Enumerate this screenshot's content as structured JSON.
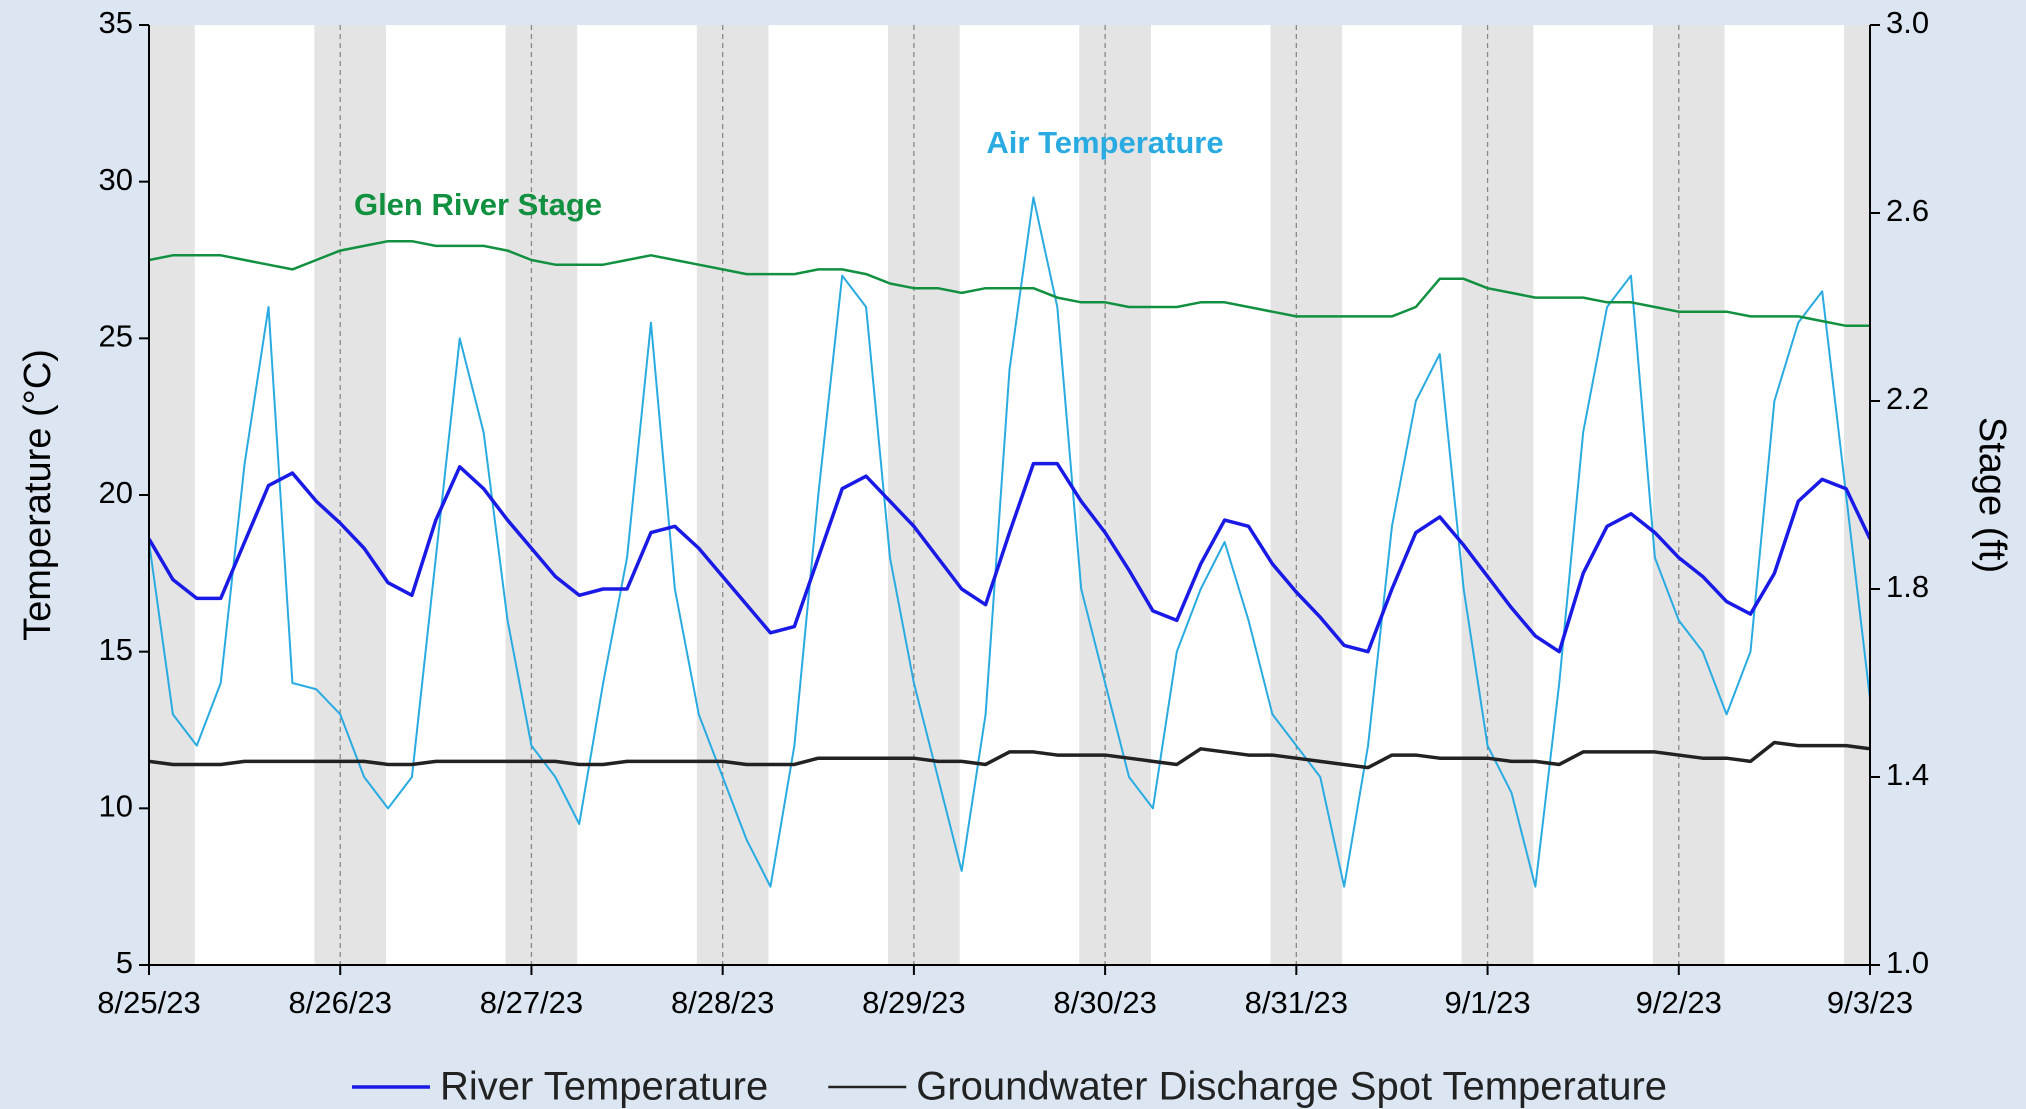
{
  "chart_data": {
    "type": "line",
    "y_label": "Temperature (°C)",
    "y2_label": "Stage (ft)",
    "xlim": [
      "8/25/23",
      "9/3/23"
    ],
    "xticks": [
      "8/25/23",
      "8/26/23",
      "8/27/23",
      "8/28/23",
      "8/29/23",
      "8/30/23",
      "8/31/23",
      "9/1/23",
      "9/2/23",
      "9/3/23"
    ],
    "ylim": [
      5,
      35
    ],
    "yticks": [
      5,
      10,
      15,
      20,
      25,
      30,
      35
    ],
    "y2lim": [
      1,
      3
    ],
    "y2ticks": [
      {
        "value": 1,
        "label": "1.0"
      },
      {
        "value": 1.4,
        "label": "1.4"
      },
      {
        "value": 1.8,
        "label": "1.8"
      },
      {
        "value": 2.2,
        "label": "2.2"
      },
      {
        "value": 2.6,
        "label": "2.6"
      },
      {
        "value": 3,
        "label": "3.0"
      }
    ],
    "grid": true,
    "legend": "bottom",
    "x": [
      "8/25/23 00:00",
      "8/25/23 03:00",
      "8/25/23 06:00",
      "8/25/23 09:00",
      "8/25/23 12:00",
      "8/25/23 15:00",
      "8/25/23 18:00",
      "8/25/23 21:00",
      "8/26/23 00:00",
      "8/26/23 03:00",
      "8/26/23 06:00",
      "8/26/23 09:00",
      "8/26/23 12:00",
      "8/26/23 15:00",
      "8/26/23 18:00",
      "8/26/23 21:00",
      "8/27/23 00:00",
      "8/27/23 03:00",
      "8/27/23 06:00",
      "8/27/23 09:00",
      "8/27/23 12:00",
      "8/27/23 15:00",
      "8/27/23 18:00",
      "8/27/23 21:00",
      "8/28/23 00:00",
      "8/28/23 03:00",
      "8/28/23 06:00",
      "8/28/23 09:00",
      "8/28/23 12:00",
      "8/28/23 15:00",
      "8/28/23 18:00",
      "8/28/23 21:00",
      "8/29/23 00:00",
      "8/29/23 03:00",
      "8/29/23 06:00",
      "8/29/23 09:00",
      "8/29/23 12:00",
      "8/29/23 15:00",
      "8/29/23 18:00",
      "8/29/23 21:00",
      "8/30/23 00:00",
      "8/30/23 03:00",
      "8/30/23 06:00",
      "8/30/23 09:00",
      "8/30/23 12:00",
      "8/30/23 15:00",
      "8/30/23 18:00",
      "8/30/23 21:00",
      "8/31/23 00:00",
      "8/31/23 03:00",
      "8/31/23 06:00",
      "8/31/23 09:00",
      "8/31/23 12:00",
      "8/31/23 15:00",
      "8/31/23 18:00",
      "8/31/23 21:00",
      "9/1/23 00:00",
      "9/1/23 03:00",
      "9/1/23 06:00",
      "9/1/23 09:00",
      "9/1/23 12:00",
      "9/1/23 15:00",
      "9/1/23 18:00",
      "9/1/23 21:00",
      "9/2/23 00:00",
      "9/2/23 03:00",
      "9/2/23 06:00",
      "9/2/23 09:00",
      "9/2/23 12:00",
      "9/2/23 15:00",
      "9/2/23 18:00",
      "9/2/23 21:00",
      "9/3/23 00:00"
    ],
    "series": [
      {
        "name": "Air Temperature",
        "color": "#29abe2",
        "in_legend": false,
        "values": [
          18.5,
          13,
          12,
          14,
          21,
          26,
          14,
          13.8,
          13,
          11,
          10,
          11,
          18,
          25,
          22,
          16,
          12,
          11,
          9.5,
          14,
          18,
          25.5,
          17,
          13,
          11,
          9,
          7.5,
          12,
          20,
          27,
          26,
          18,
          14,
          11,
          8,
          13,
          24,
          29.5,
          26,
          17,
          14,
          11,
          10,
          15,
          17,
          18.5,
          16,
          13,
          12,
          11,
          7.5,
          12,
          19,
          23,
          24.5,
          17,
          12,
          10.5,
          7.5,
          14,
          22,
          26,
          27,
          18,
          16,
          15,
          13,
          15,
          23,
          25.5,
          26.5,
          20,
          13.5
        ]
      },
      {
        "name": "Glen River Stage",
        "color": "#119140",
        "axis": "y2",
        "in_legend": false,
        "values": [
          2.5,
          2.51,
          2.51,
          2.51,
          2.5,
          2.49,
          2.48,
          2.5,
          2.52,
          2.53,
          2.54,
          2.54,
          2.53,
          2.53,
          2.53,
          2.52,
          2.5,
          2.49,
          2.49,
          2.49,
          2.5,
          2.51,
          2.5,
          2.49,
          2.48,
          2.47,
          2.47,
          2.47,
          2.48,
          2.48,
          2.47,
          2.45,
          2.44,
          2.44,
          2.43,
          2.44,
          2.44,
          2.44,
          2.42,
          2.41,
          2.41,
          2.4,
          2.4,
          2.4,
          2.41,
          2.41,
          2.4,
          2.39,
          2.38,
          2.38,
          2.38,
          2.38,
          2.38,
          2.4,
          2.46,
          2.46,
          2.44,
          2.43,
          2.42,
          2.42,
          2.42,
          2.41,
          2.41,
          2.4,
          2.39,
          2.39,
          2.39,
          2.38,
          2.38,
          2.38,
          2.37,
          2.36,
          2.36
        ]
      },
      {
        "name": "River Temperature",
        "color": "#1a1ae6",
        "in_legend": true,
        "values": [
          18.6,
          17.3,
          16.7,
          16.7,
          18.5,
          20.3,
          20.7,
          19.8,
          19.1,
          18.3,
          17.2,
          16.8,
          19.2,
          20.9,
          20.2,
          19.2,
          18.3,
          17.4,
          16.8,
          17.0,
          17.0,
          18.8,
          19.0,
          18.3,
          17.4,
          16.5,
          15.6,
          15.8,
          18.0,
          20.2,
          20.6,
          19.8,
          19.0,
          18.0,
          17.0,
          16.5,
          18.8,
          21.0,
          21.0,
          19.8,
          18.8,
          17.6,
          16.3,
          16.0,
          17.8,
          19.2,
          19.0,
          17.8,
          16.9,
          16.1,
          15.2,
          15.0,
          17.0,
          18.8,
          19.3,
          18.4,
          17.4,
          16.4,
          15.5,
          15.0,
          17.5,
          19.0,
          19.4,
          18.8,
          18.0,
          17.4,
          16.6,
          16.2,
          17.5,
          19.8,
          20.5,
          20.2,
          18.6
        ]
      },
      {
        "name": "Groundwater Discharge Spot Temperature",
        "color": "#222222",
        "in_legend": true,
        "values": [
          11.5,
          11.4,
          11.4,
          11.4,
          11.5,
          11.5,
          11.5,
          11.5,
          11.5,
          11.5,
          11.4,
          11.4,
          11.5,
          11.5,
          11.5,
          11.5,
          11.5,
          11.5,
          11.4,
          11.4,
          11.5,
          11.5,
          11.5,
          11.5,
          11.5,
          11.4,
          11.4,
          11.4,
          11.6,
          11.6,
          11.6,
          11.6,
          11.6,
          11.5,
          11.5,
          11.4,
          11.8,
          11.8,
          11.7,
          11.7,
          11.7,
          11.6,
          11.5,
          11.4,
          11.9,
          11.8,
          11.7,
          11.7,
          11.6,
          11.5,
          11.4,
          11.3,
          11.7,
          11.7,
          11.6,
          11.6,
          11.6,
          11.5,
          11.5,
          11.4,
          11.8,
          11.8,
          11.8,
          11.8,
          11.7,
          11.6,
          11.6,
          11.5,
          12.1,
          12.0,
          12.0,
          12.0,
          11.9
        ]
      }
    ]
  }
}
